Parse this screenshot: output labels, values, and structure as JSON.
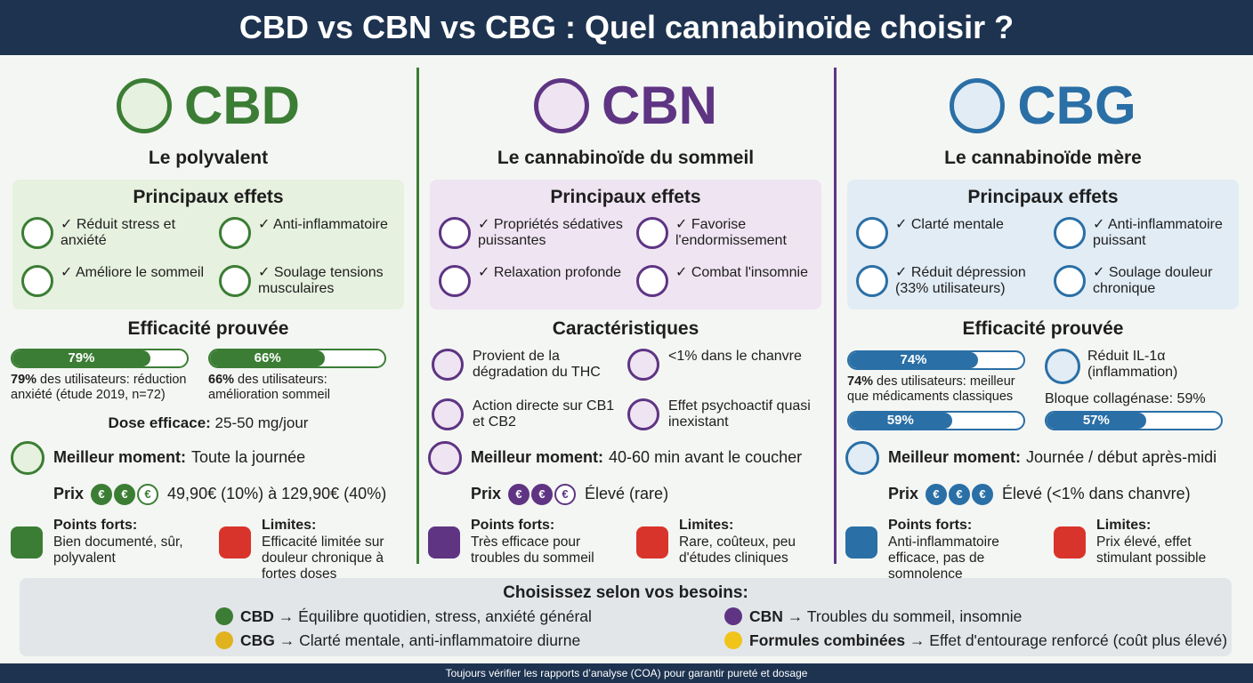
{
  "header": {
    "title": "CBD vs CBN vs CBG : Quel cannabinoïde choisir ?"
  },
  "columns": [
    {
      "name": "CBD",
      "color": "#3b7d34",
      "tint": "#e6f1df",
      "subtitle": "Le polyvalent",
      "effects_title": "Principaux effets",
      "effects": [
        "✓ Réduit stress et anxiété",
        "✓ Anti-inflammatoire",
        "✓ Améliore le sommeil",
        "✓ Soulage tensions musculaires"
      ],
      "efficacy": {
        "title": "Efficacité prouvée",
        "bars": [
          {
            "value": 79,
            "label": "79%",
            "caption_strong": "79%",
            "caption": " des utilisateurs: réduction anxiété (étude 2019, n=72)"
          },
          {
            "value": 66,
            "label": "66%",
            "caption_strong": "66%",
            "caption": " des utilisateurs: amélioration sommeil"
          }
        ],
        "dose": {
          "label": "Dose efficace:",
          "text": " 25-50 mg/jour"
        }
      },
      "moment": {
        "label": "Meilleur moment:",
        "text": "Toute la journée"
      },
      "price": {
        "label": "Prix",
        "coins": [
          {
            "symbol": "€",
            "filled": true
          },
          {
            "symbol": "€",
            "filled": true
          },
          {
            "symbol": "€",
            "filled": false
          }
        ],
        "text": "49,90€ (10%) à 129,90€ (40%)"
      },
      "strengths": {
        "label": "Points forts:",
        "text": "Bien documenté, sûr, polyvalent"
      },
      "limits": {
        "label": "Limites:",
        "text": "Efficacité limitée sur douleur chronique à fortes doses"
      }
    },
    {
      "name": "CBN",
      "color": "#5e3483",
      "tint": "#efe4f2",
      "subtitle": "Le cannabinoïde du sommeil",
      "effects_title": "Principaux effets",
      "effects": [
        "✓ Propriétés sédatives puissantes",
        "✓ Favorise l'endormissement",
        "✓ Relaxation profonde",
        "✓ Combat l'insomnie"
      ],
      "characteristics": {
        "title": "Caractéristiques",
        "items": [
          "Provient de la dégradation du THC",
          "<1% dans le chanvre",
          "Action directe sur CB1 et CB2",
          "Effet psychoactif quasi inexistant"
        ]
      },
      "moment": {
        "label": "Meilleur moment:",
        "text": "40-60 min avant le coucher"
      },
      "price": {
        "label": "Prix",
        "coins": [
          {
            "symbol": "€",
            "filled": true
          },
          {
            "symbol": "€",
            "filled": true
          },
          {
            "symbol": "€",
            "filled": false
          }
        ],
        "text": "Élevé (rare)"
      },
      "strengths": {
        "label": "Points forts:",
        "text": "Très efficace pour troubles du sommeil"
      },
      "limits": {
        "label": "Limites:",
        "text": "Rare, coûteux, peu d'études cliniques"
      }
    },
    {
      "name": "CBG",
      "color": "#2a6fa6",
      "tint": "#e1ecf5",
      "subtitle": "Le cannabinoïde mère",
      "effects_title": "Principaux effets",
      "effects": [
        "✓ Clarté mentale",
        "✓ Anti-inflammatoire puissant",
        "✓ Réduit dépression (33% utilisateurs)",
        "✓ Soulage douleur chronique"
      ],
      "efficacy": {
        "title": "Efficacité prouvée",
        "bars": [
          {
            "value": 74,
            "label": "74%",
            "caption_strong": "74%",
            "caption": " des utilisateurs: meilleur que médicaments classiques"
          },
          {
            "value": 59,
            "label": "59%"
          },
          {
            "value": 57,
            "label": "57%"
          }
        ],
        "notes": [
          "Réduit IL-1α (inflammation)",
          "Bloque collagénase: 59%"
        ]
      },
      "moment": {
        "label": "Meilleur moment:",
        "text": "Journée / début après-midi"
      },
      "price": {
        "label": "Prix",
        "coins": [
          {
            "symbol": "€",
            "filled": true
          },
          {
            "symbol": "€",
            "filled": true
          },
          {
            "symbol": "€",
            "filled": true
          }
        ],
        "text": "Élevé (<1% dans chanvre)"
      },
      "strengths": {
        "label": "Points forts:",
        "text": "Anti-inflammatoire efficace, pas de somnolence"
      },
      "limits": {
        "label": "Limites:",
        "text": "Prix élevé, effet stimulant possible"
      }
    }
  ],
  "guide": {
    "title": "Choisissez selon vos besoins:",
    "items": [
      {
        "name": "CBD",
        "text": " → Équilibre quotidien, stress, anxiété général",
        "color": "#3b7d34"
      },
      {
        "name": "CBN",
        "text": " → Troubles du sommeil, insomnie",
        "color": "#5e3483"
      },
      {
        "name": "CBG",
        "text": " → Clarté mentale, anti-inflammatoire diurne",
        "color": "#e0b21e"
      },
      {
        "name": "Formules combinées",
        "text": " → Effet d'entourage renforcé (coût plus élevé)",
        "color": "#f0c419"
      }
    ]
  },
  "footer": {
    "note": "Toujours vérifier les rapports d’analyse (COA) pour garantir pureté et dosage"
  }
}
